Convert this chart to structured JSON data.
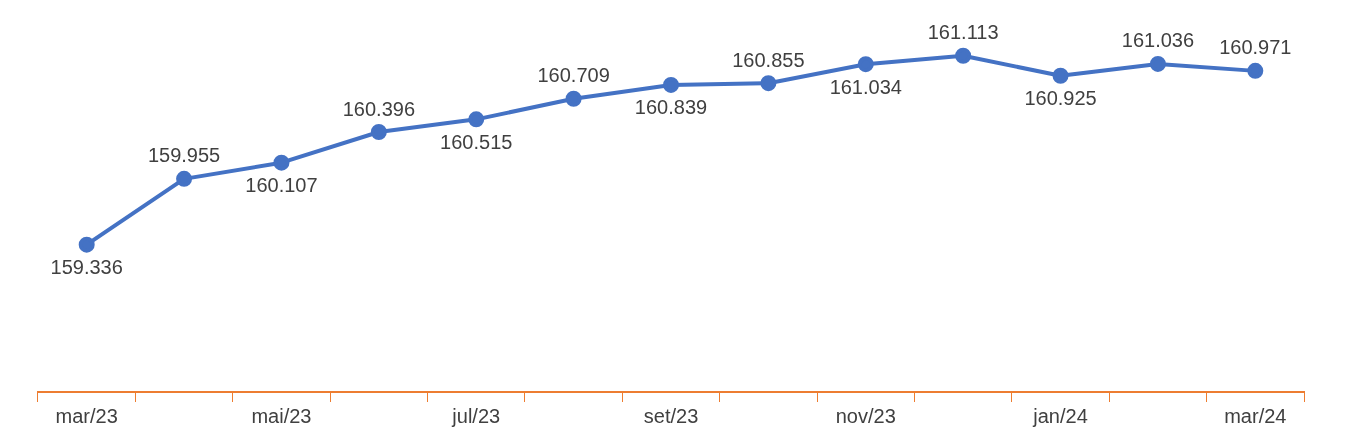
{
  "chart_data": {
    "type": "line",
    "categories": [
      "mar/23",
      null,
      "mai/23",
      null,
      "jul/23",
      null,
      "set/23",
      null,
      "nov/23",
      null,
      "jan/24",
      null,
      "mar/24"
    ],
    "series": [
      {
        "color": "#4472c4",
        "values": [
          159336,
          159955,
          160107,
          160396,
          160515,
          160709,
          160839,
          160855,
          161034,
          161113,
          160925,
          161036,
          160971
        ],
        "value_labels": [
          "159.336",
          "159.955",
          "160.107",
          "160.396",
          "160.515",
          "160.709",
          "160.839",
          "160.855",
          "161.034",
          "161.113",
          "160.925",
          "161.036",
          "160.971"
        ]
      }
    ],
    "marker": "circle",
    "line_style": "solid",
    "grid": false,
    "legend": false,
    "tick_labels": "x"
  }
}
